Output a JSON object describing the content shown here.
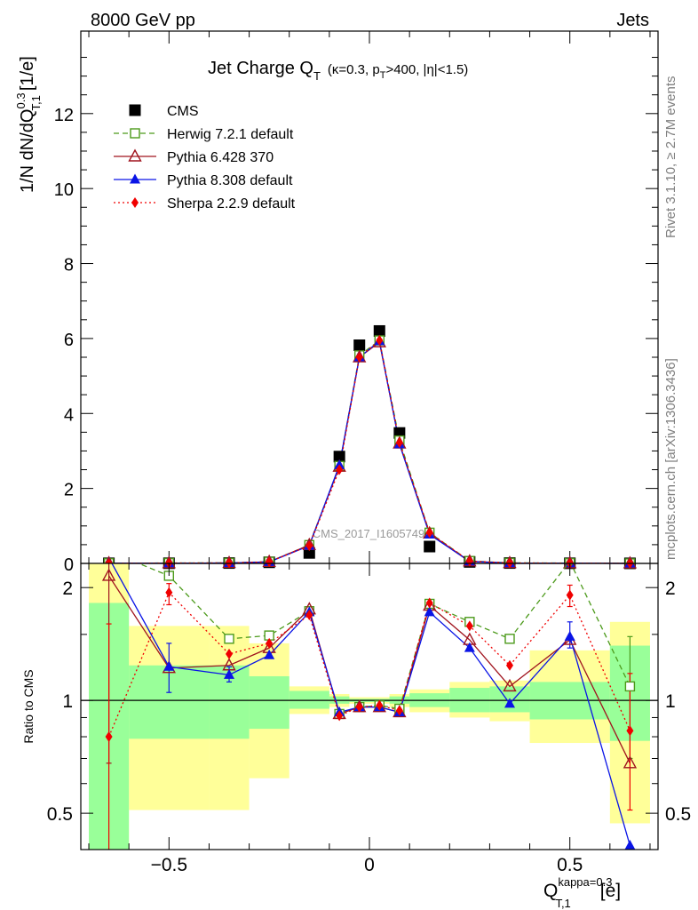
{
  "header": {
    "left": "8000 GeV pp",
    "right": "Jets"
  },
  "side_labels": {
    "rivet": "Rivet 3.1.10, ≥ 2.7M events",
    "mcplots": "mcplots.cern.ch [arXiv:1306.3436]"
  },
  "watermark": "CMS_2017_I1605749",
  "chart_data": [
    {
      "type": "line",
      "title": "Jet Charge Q_T (κ=0.3, p_T>400, |η|<1.5)",
      "title_main": "Jet Charge Q",
      "title_sub": "T",
      "title_cut": "(κ=0.3, p",
      "title_cut_sub": "T",
      "title_cut_rest": ">400, |η|<1.5)",
      "ylabel": "1/N dN/dQ^{0.3}_{T,1} [1/e]",
      "ylabel_main": "1/N dN/dQ",
      "ylabel_sup": "0.3",
      "ylabel_sub": "T,1",
      "ylabel_unit": "[1/e]",
      "xlim": [
        -0.72,
        0.72
      ],
      "ylim": [
        0,
        14.2
      ],
      "yticks": [
        0,
        2,
        4,
        6,
        8,
        10,
        12
      ],
      "legend_position": "top-left",
      "x": [
        -0.65,
        -0.5,
        -0.35,
        -0.25,
        -0.15,
        -0.075,
        -0.025,
        0.025,
        0.075,
        0.15,
        0.25,
        0.35,
        0.5,
        0.65
      ],
      "series": [
        {
          "name": "CMS",
          "color": "#000000",
          "marker": "square-filled",
          "values": [
            0.003,
            0.005,
            0.01,
            0.03,
            0.28,
            2.85,
            5.82,
            6.2,
            3.48,
            0.45,
            0.04,
            0.01,
            0.004,
            0.002
          ]
        },
        {
          "name": "Herwig 7.2.1 default",
          "color": "#4c9a1b",
          "marker": "square-open",
          "dash": "6,4",
          "values": [
            0.006,
            0.011,
            0.015,
            0.045,
            0.49,
            2.6,
            5.55,
            5.95,
            3.28,
            0.82,
            0.065,
            0.015,
            0.009,
            0.0022
          ]
        },
        {
          "name": "Pythia 6.428 370",
          "color": "#a0141e",
          "marker": "triangle-open",
          "values": [
            0.0065,
            0.006,
            0.0125,
            0.041,
            0.49,
            2.58,
            5.5,
            5.9,
            3.2,
            0.8,
            0.055,
            0.011,
            0.0058,
            0.0014
          ]
        },
        {
          "name": "Pythia 8.308 default",
          "color": "#0a14e6",
          "marker": "triangle-filled",
          "values": [
            0.0053,
            0.006,
            0.0116,
            0.04,
            0.47,
            2.62,
            5.5,
            5.93,
            3.18,
            0.77,
            0.052,
            0.0095,
            0.006,
            0.0008
          ]
        },
        {
          "name": "Sherpa 2.2.9 default",
          "color": "#f00000",
          "marker": "diamond-filled",
          "dash": "2,3",
          "values": [
            0.0024,
            0.0097,
            0.0135,
            0.043,
            0.47,
            2.5,
            5.5,
            5.95,
            3.22,
            0.82,
            0.06,
            0.0125,
            0.0076,
            0.0017
          ]
        }
      ]
    },
    {
      "type": "line",
      "ylabel": "Ratio to CMS",
      "xlabel": "Q^{kappa=0.3}_{T,1} [e]",
      "xlabel_main": "Q",
      "xlabel_sup": "kappa=0.3",
      "xlabel_sub": "T,1",
      "xlabel_unit": "[e]",
      "xlim": [
        -0.72,
        0.72
      ],
      "ylim": [
        0.4,
        2.32
      ],
      "yscale": "log",
      "ytick_labels": [
        "0.5",
        "1",
        "2"
      ],
      "xtick_labels": [
        "−0.5",
        "0",
        "0.5"
      ],
      "xticks": [
        -0.5,
        0,
        0.5
      ],
      "reference_line": 1,
      "bands": {
        "x_edges": [
          -0.7,
          -0.6,
          -0.4,
          -0.3,
          -0.2,
          -0.1,
          -0.05,
          0,
          0.05,
          0.1,
          0.2,
          0.3,
          0.4,
          0.6,
          0.7
        ],
        "yellow_low": [
          0.3,
          0.51,
          0.51,
          0.62,
          0.92,
          0.96,
          0.98,
          0.98,
          0.96,
          0.93,
          0.9,
          0.88,
          0.77,
          0.47
        ],
        "yellow_high": [
          2.4,
          1.58,
          1.58,
          1.42,
          1.09,
          1.04,
          1.02,
          1.02,
          1.04,
          1.07,
          1.12,
          1.13,
          1.36,
          1.62
        ],
        "green_low": [
          0.3,
          0.79,
          0.79,
          0.84,
          0.95,
          0.98,
          0.99,
          0.99,
          0.98,
          0.96,
          0.93,
          0.93,
          0.89,
          0.78
        ],
        "green_high": [
          1.82,
          1.24,
          1.24,
          1.16,
          1.06,
          1.025,
          1.01,
          1.01,
          1.025,
          1.045,
          1.08,
          1.09,
          1.12,
          1.4
        ]
      },
      "series": [
        {
          "name": "Herwig 7.2.1 default",
          "values": [
            2.5,
            2.15,
            1.46,
            1.49,
            1.73,
            0.92,
            0.96,
            0.97,
            0.95,
            1.81,
            1.62,
            1.46,
            2.35,
            1.09
          ],
          "err_low": [
            null,
            null,
            null,
            null,
            null,
            null,
            null,
            null,
            null,
            null,
            null,
            null,
            null,
            0.7
          ],
          "err_high": [
            null,
            null,
            null,
            null,
            null,
            null,
            null,
            null,
            null,
            null,
            null,
            null,
            null,
            1.48
          ]
        },
        {
          "name": "Pythia 6.428 370",
          "values": [
            2.15,
            1.22,
            1.24,
            1.38,
            1.75,
            0.92,
            0.96,
            0.96,
            0.93,
            1.79,
            1.45,
            1.09,
            1.45,
            0.68
          ],
          "err_low": [
            0.68,
            null,
            null,
            null,
            null,
            null,
            null,
            null,
            null,
            null,
            null,
            null,
            null,
            null
          ],
          "err_high": [
            2.4,
            null,
            null,
            null,
            null,
            null,
            null,
            null,
            null,
            null,
            null,
            null,
            null,
            null
          ]
        },
        {
          "name": "Pythia 8.308 default",
          "values": [
            2.4,
            1.23,
            1.17,
            1.32,
            1.72,
            0.93,
            0.96,
            0.96,
            0.93,
            1.72,
            1.38,
            0.98,
            1.48,
            0.41
          ],
          "err_low": [
            null,
            1.05,
            1.12,
            null,
            null,
            null,
            null,
            null,
            null,
            null,
            null,
            null,
            1.38,
            null
          ],
          "err_high": [
            null,
            1.42,
            1.23,
            null,
            null,
            null,
            null,
            null,
            null,
            null,
            null,
            null,
            1.62,
            null
          ]
        },
        {
          "name": "Sherpa 2.2.9 default",
          "values": [
            0.8,
            1.94,
            1.33,
            1.42,
            1.69,
            0.91,
            0.96,
            0.97,
            0.94,
            1.82,
            1.58,
            1.24,
            1.91,
            0.83
          ],
          "err_low": [
            0.3,
            1.8,
            null,
            null,
            null,
            null,
            null,
            null,
            null,
            null,
            null,
            null,
            1.78,
            0.51
          ],
          "err_high": [
            1.6,
            2.05,
            null,
            null,
            null,
            null,
            null,
            null,
            null,
            null,
            null,
            null,
            2.03,
            1.18
          ]
        }
      ]
    }
  ]
}
